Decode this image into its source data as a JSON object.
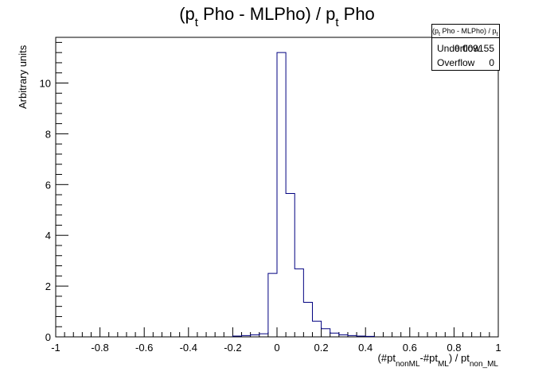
{
  "chart_data": {
    "type": "histogram",
    "title": "(p_t Pho - MLPho) / p_t Pho",
    "title_parts": {
      "a": "(p",
      "sub1": "t",
      "b": " Pho - MLPho) / p",
      "sub2": "t",
      "c": " Pho"
    },
    "ylabel": "Arbitrary units",
    "xlabel_parts": {
      "a": "(#pt",
      "sub1": "nonML",
      "b": "-#pt",
      "sub2": "ML",
      "c": ") / pt",
      "sub3": "non_ML"
    },
    "xlim": [
      -1,
      1
    ],
    "ylim": [
      0,
      11.8
    ],
    "x_ticks": [
      "-1",
      "-0.8",
      "-0.6",
      "-0.4",
      "-0.2",
      "0",
      "0.2",
      "0.4",
      "0.6",
      "0.8",
      "1"
    ],
    "y_ticks": [
      "0",
      "2",
      "4",
      "6",
      "8",
      "10"
    ],
    "line_color": "#000080",
    "bin_width": 0.04,
    "bins_low_edges": [
      -0.2,
      -0.16,
      -0.12,
      -0.08,
      -0.04,
      0.0,
      0.04,
      0.08,
      0.12,
      0.16,
      0.2,
      0.24,
      0.28,
      0.32,
      0.36,
      0.4
    ],
    "values": [
      0.03,
      0.05,
      0.08,
      0.12,
      2.5,
      11.2,
      5.65,
      2.68,
      1.36,
      0.62,
      0.32,
      0.15,
      0.08,
      0.05,
      0.03,
      0.02
    ]
  },
  "stats_box": {
    "title": "(p_t Pho - MLPho) / p_t Pho",
    "rows": [
      {
        "label": "Underflow",
        "value": "0.009155"
      },
      {
        "label": "Overflow",
        "value": "0"
      }
    ]
  }
}
